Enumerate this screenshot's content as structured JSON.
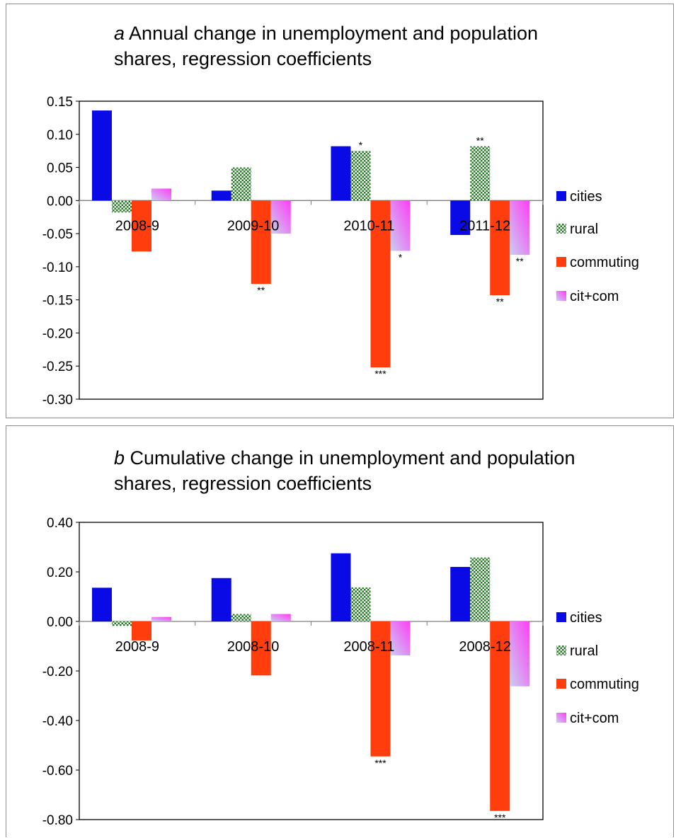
{
  "chart_data": [
    {
      "type": "bar",
      "panel_letter": "a",
      "title": "Annual change in unemployment and population shares, regression coefficients",
      "title_lines": [
        "Annual change in unemployment and population",
        "shares, regression coefficients"
      ],
      "categories": [
        "2008-9",
        "2009-10",
        "2010-11",
        "2011-12"
      ],
      "ylim": [
        -0.3,
        0.15
      ],
      "yticks": [
        "0.15",
        "0.10",
        "0.05",
        "0.00",
        "-0.05",
        "-0.10",
        "-0.15",
        "-0.20",
        "-0.25",
        "-0.30"
      ],
      "ytick_values": [
        0.15,
        0.1,
        0.05,
        0.0,
        -0.05,
        -0.1,
        -0.15,
        -0.2,
        -0.25,
        -0.3
      ],
      "legend_position": "right",
      "series": [
        {
          "name": "cities",
          "values": [
            0.136,
            0.015,
            0.082,
            -0.052
          ],
          "significance": [
            "",
            "",
            "",
            ""
          ]
        },
        {
          "name": "rural",
          "values": [
            -0.018,
            0.05,
            0.075,
            0.082
          ],
          "significance": [
            "",
            "",
            "*",
            "**"
          ]
        },
        {
          "name": "commuting",
          "values": [
            -0.077,
            -0.126,
            -0.252,
            -0.143
          ],
          "significance": [
            "",
            "**",
            "***",
            "**"
          ]
        },
        {
          "name": "cit+com",
          "values": [
            0.018,
            -0.05,
            -0.076,
            -0.082
          ],
          "significance": [
            "",
            "",
            "*",
            "**"
          ]
        }
      ]
    },
    {
      "type": "bar",
      "panel_letter": "b",
      "title": "Cumulative change in unemployment and population shares, regression coefficients",
      "title_lines": [
        "Cumulative change in unemployment and population",
        "shares, regression coefficients"
      ],
      "categories": [
        "2008-9",
        "2008-10",
        "2008-11",
        "2008-12"
      ],
      "ylim": [
        -0.8,
        0.4
      ],
      "yticks": [
        "0.40",
        "0.20",
        "0.00",
        "-0.20",
        "-0.40",
        "-0.60",
        "-0.80"
      ],
      "ytick_values": [
        0.4,
        0.2,
        0.0,
        -0.2,
        -0.4,
        -0.6,
        -0.8
      ],
      "legend_position": "right",
      "series": [
        {
          "name": "cities",
          "values": [
            0.136,
            0.175,
            0.275,
            0.22
          ],
          "significance": [
            "",
            "",
            "",
            ""
          ]
        },
        {
          "name": "rural",
          "values": [
            -0.018,
            0.03,
            0.137,
            0.258
          ],
          "significance": [
            "",
            "",
            "",
            ""
          ]
        },
        {
          "name": "commuting",
          "values": [
            -0.077,
            -0.218,
            -0.545,
            -0.765
          ],
          "significance": [
            "",
            "",
            "***",
            "***"
          ]
        },
        {
          "name": "cit+com",
          "values": [
            0.018,
            0.03,
            -0.137,
            -0.262
          ],
          "significance": [
            "",
            "",
            "",
            ""
          ]
        }
      ]
    }
  ],
  "colors": {
    "cities": "#0a0ae6",
    "rural_dot": "#1e7a1e",
    "commuting": "#ff3d0d",
    "citcom_light": "#c8d0f0",
    "citcom_dark": "#ff3df5",
    "axis": "#000000",
    "frame": "#8c8c8c"
  }
}
